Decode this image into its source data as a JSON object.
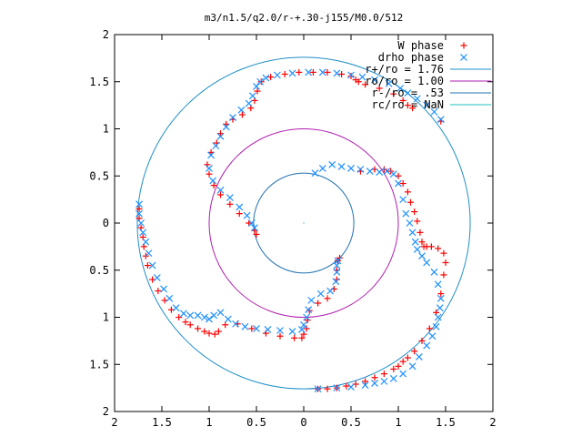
{
  "chart_data": {
    "type": "scatter",
    "title": "m3/n1.5/q2.0/r-+.30-j155/M0.0/512",
    "xlim": [
      -2,
      2
    ],
    "ylim": [
      -2,
      2
    ],
    "x_ticks": [
      -2,
      -1.5,
      -1,
      -0.5,
      0,
      0.5,
      1,
      1.5,
      2
    ],
    "y_ticks": [
      -2,
      -1.5,
      -1,
      -0.5,
      0,
      0.5,
      1,
      1.5,
      2
    ],
    "x_tick_labels": [
      "2",
      "1.5",
      "1",
      "0.5",
      "0",
      "0.5",
      "1",
      "1.5",
      "2"
    ],
    "y_tick_labels": [
      "2",
      "1.5",
      "1",
      "0.5",
      "0",
      "0.5",
      "1",
      "1.5",
      "2"
    ],
    "grid": false,
    "legend_position": "top-right",
    "series": [
      {
        "name": "W phase",
        "kind": "points",
        "marker": "plus",
        "color": "#ff0000",
        "x": [
          -1.74,
          -1.74,
          -1.72,
          -1.7,
          -1.69,
          -1.67,
          -1.65,
          -1.6,
          -1.54,
          -1.47,
          -1.4,
          -1.32,
          -1.25,
          -1.2,
          -1.12,
          -1.05,
          -1.0,
          -0.94,
          -0.9,
          -0.83,
          -0.7,
          -0.55,
          -0.4,
          -0.25,
          -0.1,
          -0.02,
          0.0,
          0.03,
          0.04,
          0.06,
          0.15,
          0.25,
          0.32,
          0.35,
          0.35,
          0.36,
          0.38,
          0.6,
          0.75,
          0.85,
          0.92,
          1.0,
          1.05,
          1.1,
          1.13,
          1.17,
          1.2,
          1.23,
          1.25,
          1.27,
          1.3,
          1.35,
          1.42,
          1.48,
          1.5,
          1.48,
          1.45,
          1.4,
          1.33,
          1.25,
          1.17,
          1.1,
          1.05,
          1.0,
          0.95,
          0.85,
          0.75,
          0.65,
          0.55,
          0.45,
          0.35,
          0.25,
          0.15,
          -0.5,
          -0.52,
          -0.58,
          -0.68,
          -0.78,
          -0.88,
          -0.95,
          -1.0,
          -1.02,
          -0.98,
          -0.92,
          -0.88,
          -0.82,
          -0.75,
          -0.65,
          -0.56,
          -0.52,
          -0.49,
          -0.45,
          -0.35,
          -0.2,
          -0.05,
          0.1,
          0.25,
          0.4,
          0.5,
          0.55,
          0.58,
          0.65,
          0.8,
          0.95,
          1.05,
          1.1,
          1.15,
          1.45
        ],
        "y": [
          0.15,
          0.05,
          -0.05,
          -0.15,
          -0.25,
          -0.35,
          -0.45,
          -0.6,
          -0.72,
          -0.82,
          -0.92,
          -1.0,
          -1.05,
          -1.08,
          -1.12,
          -1.15,
          -1.17,
          -1.18,
          -1.15,
          -1.08,
          -1.07,
          -1.12,
          -1.17,
          -1.2,
          -1.22,
          -1.22,
          -1.18,
          -1.12,
          -1.03,
          -0.93,
          -0.85,
          -0.8,
          -0.7,
          -0.6,
          -0.5,
          -0.4,
          -0.37,
          0.55,
          0.57,
          0.57,
          0.55,
          0.5,
          0.42,
          0.33,
          0.22,
          0.12,
          0.02,
          -0.1,
          -0.2,
          -0.25,
          -0.25,
          -0.25,
          -0.27,
          -0.32,
          -0.42,
          -0.55,
          -0.75,
          -0.95,
          -1.12,
          -1.25,
          -1.36,
          -1.43,
          -1.47,
          -1.52,
          -1.55,
          -1.6,
          -1.64,
          -1.68,
          -1.71,
          -1.73,
          -1.75,
          -1.76,
          -1.76,
          -0.12,
          -0.08,
          0.0,
          0.1,
          0.2,
          0.3,
          0.4,
          0.52,
          0.62,
          0.75,
          0.85,
          0.95,
          1.05,
          1.1,
          1.15,
          1.22,
          1.3,
          1.4,
          1.5,
          1.55,
          1.58,
          1.6,
          1.6,
          1.6,
          1.58,
          1.56,
          1.52,
          1.5,
          1.47,
          1.43,
          1.37,
          1.3,
          1.25,
          1.22,
          1.08
        ]
      },
      {
        "name": "drho phase",
        "kind": "points",
        "marker": "cross",
        "color": "#1e90ff",
        "x": [
          -1.74,
          -1.74,
          -1.72,
          -1.7,
          -1.67,
          -1.64,
          -1.6,
          -1.55,
          -1.48,
          -1.42,
          -1.35,
          -1.27,
          -1.2,
          -1.12,
          -1.05,
          -1.0,
          -0.95,
          -0.88,
          -0.8,
          -0.72,
          -0.62,
          -0.5,
          -0.38,
          -0.25,
          -0.12,
          -0.02,
          0.0,
          0.03,
          0.05,
          0.08,
          0.18,
          0.28,
          0.34,
          0.35,
          0.35,
          0.36,
          0.12,
          0.2,
          0.3,
          0.4,
          0.5,
          0.6,
          0.7,
          0.8,
          0.88,
          0.95,
          1.0,
          1.05,
          1.08,
          1.12,
          1.15,
          1.18,
          1.2,
          1.25,
          1.3,
          1.38,
          1.42,
          1.45,
          1.44,
          1.42,
          1.4,
          1.36,
          1.3,
          1.22,
          1.15,
          1.05,
          0.95,
          0.85,
          0.75,
          0.65,
          0.5,
          0.35,
          0.15,
          -0.52,
          -0.55,
          -0.6,
          -0.68,
          -0.78,
          -0.88,
          -0.96,
          -1.0,
          -0.98,
          -0.93,
          -0.88,
          -0.82,
          -0.75,
          -0.66,
          -0.58,
          -0.54,
          -0.5,
          -0.46,
          -0.4,
          -0.28,
          -0.12,
          0.05,
          0.2,
          0.35,
          0.5,
          0.62,
          0.75,
          0.9,
          1.02,
          1.1,
          1.2,
          1.3,
          1.38,
          1.45
        ],
        "y": [
          0.2,
          0.1,
          0.0,
          -0.1,
          -0.2,
          -0.32,
          -0.45,
          -0.58,
          -0.7,
          -0.8,
          -0.9,
          -0.96,
          -0.98,
          -0.98,
          -1.0,
          -1.02,
          -0.98,
          -0.95,
          -1.02,
          -1.07,
          -1.1,
          -1.12,
          -1.13,
          -1.14,
          -1.15,
          -1.13,
          -1.08,
          -1.0,
          -0.92,
          -0.82,
          -0.75,
          -0.72,
          -0.62,
          -0.52,
          -0.45,
          -0.4,
          0.53,
          0.58,
          0.62,
          0.6,
          0.58,
          0.57,
          0.55,
          0.54,
          0.55,
          0.52,
          0.42,
          0.25,
          0.1,
          0.0,
          -0.1,
          -0.2,
          -0.28,
          -0.35,
          -0.42,
          -0.52,
          -0.65,
          -0.8,
          -0.9,
          -1.0,
          -1.1,
          -1.2,
          -1.3,
          -1.42,
          -1.52,
          -1.6,
          -1.65,
          -1.68,
          -1.7,
          -1.72,
          -1.74,
          -1.75,
          -1.76,
          -0.05,
          0.0,
          0.08,
          0.17,
          0.27,
          0.35,
          0.45,
          0.58,
          0.72,
          0.82,
          0.92,
          1.02,
          1.12,
          1.2,
          1.27,
          1.35,
          1.45,
          1.5,
          1.54,
          1.57,
          1.59,
          1.6,
          1.6,
          1.59,
          1.57,
          1.55,
          1.52,
          1.48,
          1.43,
          1.38,
          1.32,
          1.25,
          1.18,
          1.1
        ]
      },
      {
        "name": "r+/ro = 1.76",
        "kind": "circle",
        "radius": 1.76,
        "color": "#1f8fc8"
      },
      {
        "name": "ro/ro = 1.00",
        "kind": "circle",
        "radius": 1.0,
        "color": "#b01fb0"
      },
      {
        "name": "r-/ro = .53",
        "kind": "circle",
        "radius": 0.53,
        "color": "#1f70b0"
      },
      {
        "name": "rc/ro = NaN",
        "kind": "circle",
        "radius": null,
        "color": "#20c0c0"
      }
    ]
  }
}
